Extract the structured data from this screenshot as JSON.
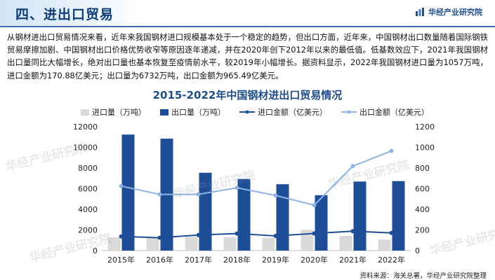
{
  "header": {
    "title": "四、进出口贸易",
    "brand": "华经产业研究院"
  },
  "paragraph": "从钢材进出口贸易情况来看，近年来我国钢材进口规模基本处于一个稳定的趋势，但出口方面，近年来，中国钢材出口数量随着国际钢铁贸易摩擦加剧、中国钢材出口价格优势收窄等原因逐年递减，并在2020年创下2012年以来的最低值。低基数效应下，2021年我国钢材出口量同比大幅增长，绝对出口量也基本恢复至疫情前水平，较2019年小幅增长。据资料显示，2022年我国钢材进口量为1057万吨，进口金额为170.88亿美元；出口量为6732万吨，出口金额为965.49亿美元。",
  "watermark": "华经产业研究院",
  "source": "资料来源：海关总署，华经产业研究院整理",
  "colors": {
    "import_volume": "#d9d9d9",
    "export_volume": "#1f4e99",
    "import_amount": "#1f4e99",
    "export_amount": "#8fb4e3",
    "title": "#1f4c8a",
    "header_line": "#3d6fae"
  },
  "chart_data": {
    "type": "bar",
    "title": "2015-2022年中国钢材进出口贸易情况",
    "categories": [
      "2015年",
      "2016年",
      "2017年",
      "2018年",
      "2019年",
      "2020年",
      "2021年",
      "2022年"
    ],
    "series": [
      {
        "name": "进口量（万吨）",
        "type": "bar",
        "axis": "left",
        "values": [
          1278,
          1322,
          1330,
          1317,
          1230,
          2023,
          1427,
          1057
        ]
      },
      {
        "name": "出口量（万吨）",
        "type": "bar",
        "axis": "left",
        "values": [
          11240,
          10843,
          7541,
          6934,
          6429,
          5367,
          6690,
          6732
        ]
      },
      {
        "name": "进口金额（亿美元）",
        "type": "line",
        "axis": "right",
        "values": [
          137,
          125,
          151,
          165,
          142,
          166,
          188,
          170.88
        ]
      },
      {
        "name": "出口金额（亿美元）",
        "type": "line",
        "axis": "right",
        "values": [
          625,
          544,
          545,
          608,
          534,
          440,
          818,
          965.49
        ]
      }
    ],
    "yleft": {
      "min": 0,
      "max": 12000,
      "ticks": [
        0,
        2000,
        4000,
        6000,
        8000,
        10000,
        12000
      ]
    },
    "yright": {
      "min": 0,
      "max": 1200,
      "ticks": [
        0,
        200,
        400,
        600,
        800,
        1000,
        1200
      ]
    },
    "legend_position": "top"
  }
}
